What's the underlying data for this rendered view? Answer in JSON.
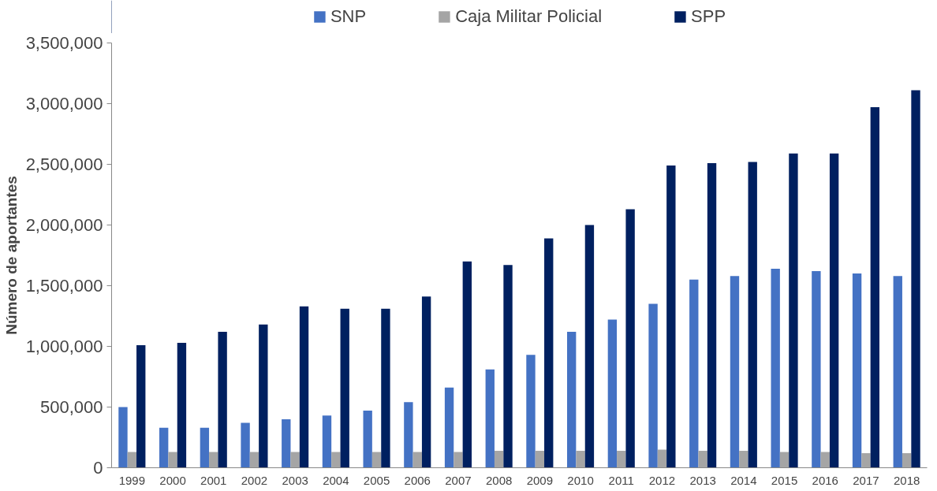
{
  "chart_data": {
    "type": "bar",
    "ylabel": "Número de aportantes",
    "categories": [
      "1999",
      "2000",
      "2001",
      "2002",
      "2003",
      "2004",
      "2005",
      "2006",
      "2007",
      "2008",
      "2009",
      "2010",
      "2011",
      "2012",
      "2013",
      "2014",
      "2015",
      "2016",
      "2017",
      "2018"
    ],
    "series": [
      {
        "name": "SNP",
        "color": "#4472c4",
        "values": [
          500000,
          330000,
          330000,
          370000,
          400000,
          430000,
          470000,
          540000,
          660000,
          810000,
          930000,
          1120000,
          1220000,
          1350000,
          1550000,
          1580000,
          1640000,
          1620000,
          1600000,
          1580000
        ]
      },
      {
        "name": "Caja Militar Policial",
        "color": "#a5a5a5",
        "values": [
          130000,
          130000,
          130000,
          130000,
          130000,
          130000,
          130000,
          130000,
          130000,
          140000,
          140000,
          140000,
          140000,
          150000,
          140000,
          140000,
          130000,
          130000,
          120000,
          120000
        ]
      },
      {
        "name": "SPP",
        "color": "#002060",
        "values": [
          1010000,
          1030000,
          1120000,
          1180000,
          1330000,
          1310000,
          1310000,
          1410000,
          1700000,
          1670000,
          1890000,
          2000000,
          2130000,
          2490000,
          2510000,
          2520000,
          2590000,
          2590000,
          2970000,
          3110000
        ]
      }
    ],
    "ylim": [
      0,
      3500000
    ],
    "yticks": [
      0,
      {
        "value": 500000,
        "label": "500,000"
      },
      {
        "value": 1000000,
        "label": "1,000,000"
      },
      {
        "value": 1500000,
        "label": "1,500,000"
      },
      {
        "value": 2000000,
        "label": "2,000,000"
      },
      {
        "value": 2500000,
        "label": "2,500,000"
      },
      {
        "value": 3000000,
        "label": "3,000,000"
      },
      {
        "value": 3500000,
        "label": "3,500,000"
      }
    ],
    "grid": false,
    "legend": "top"
  }
}
